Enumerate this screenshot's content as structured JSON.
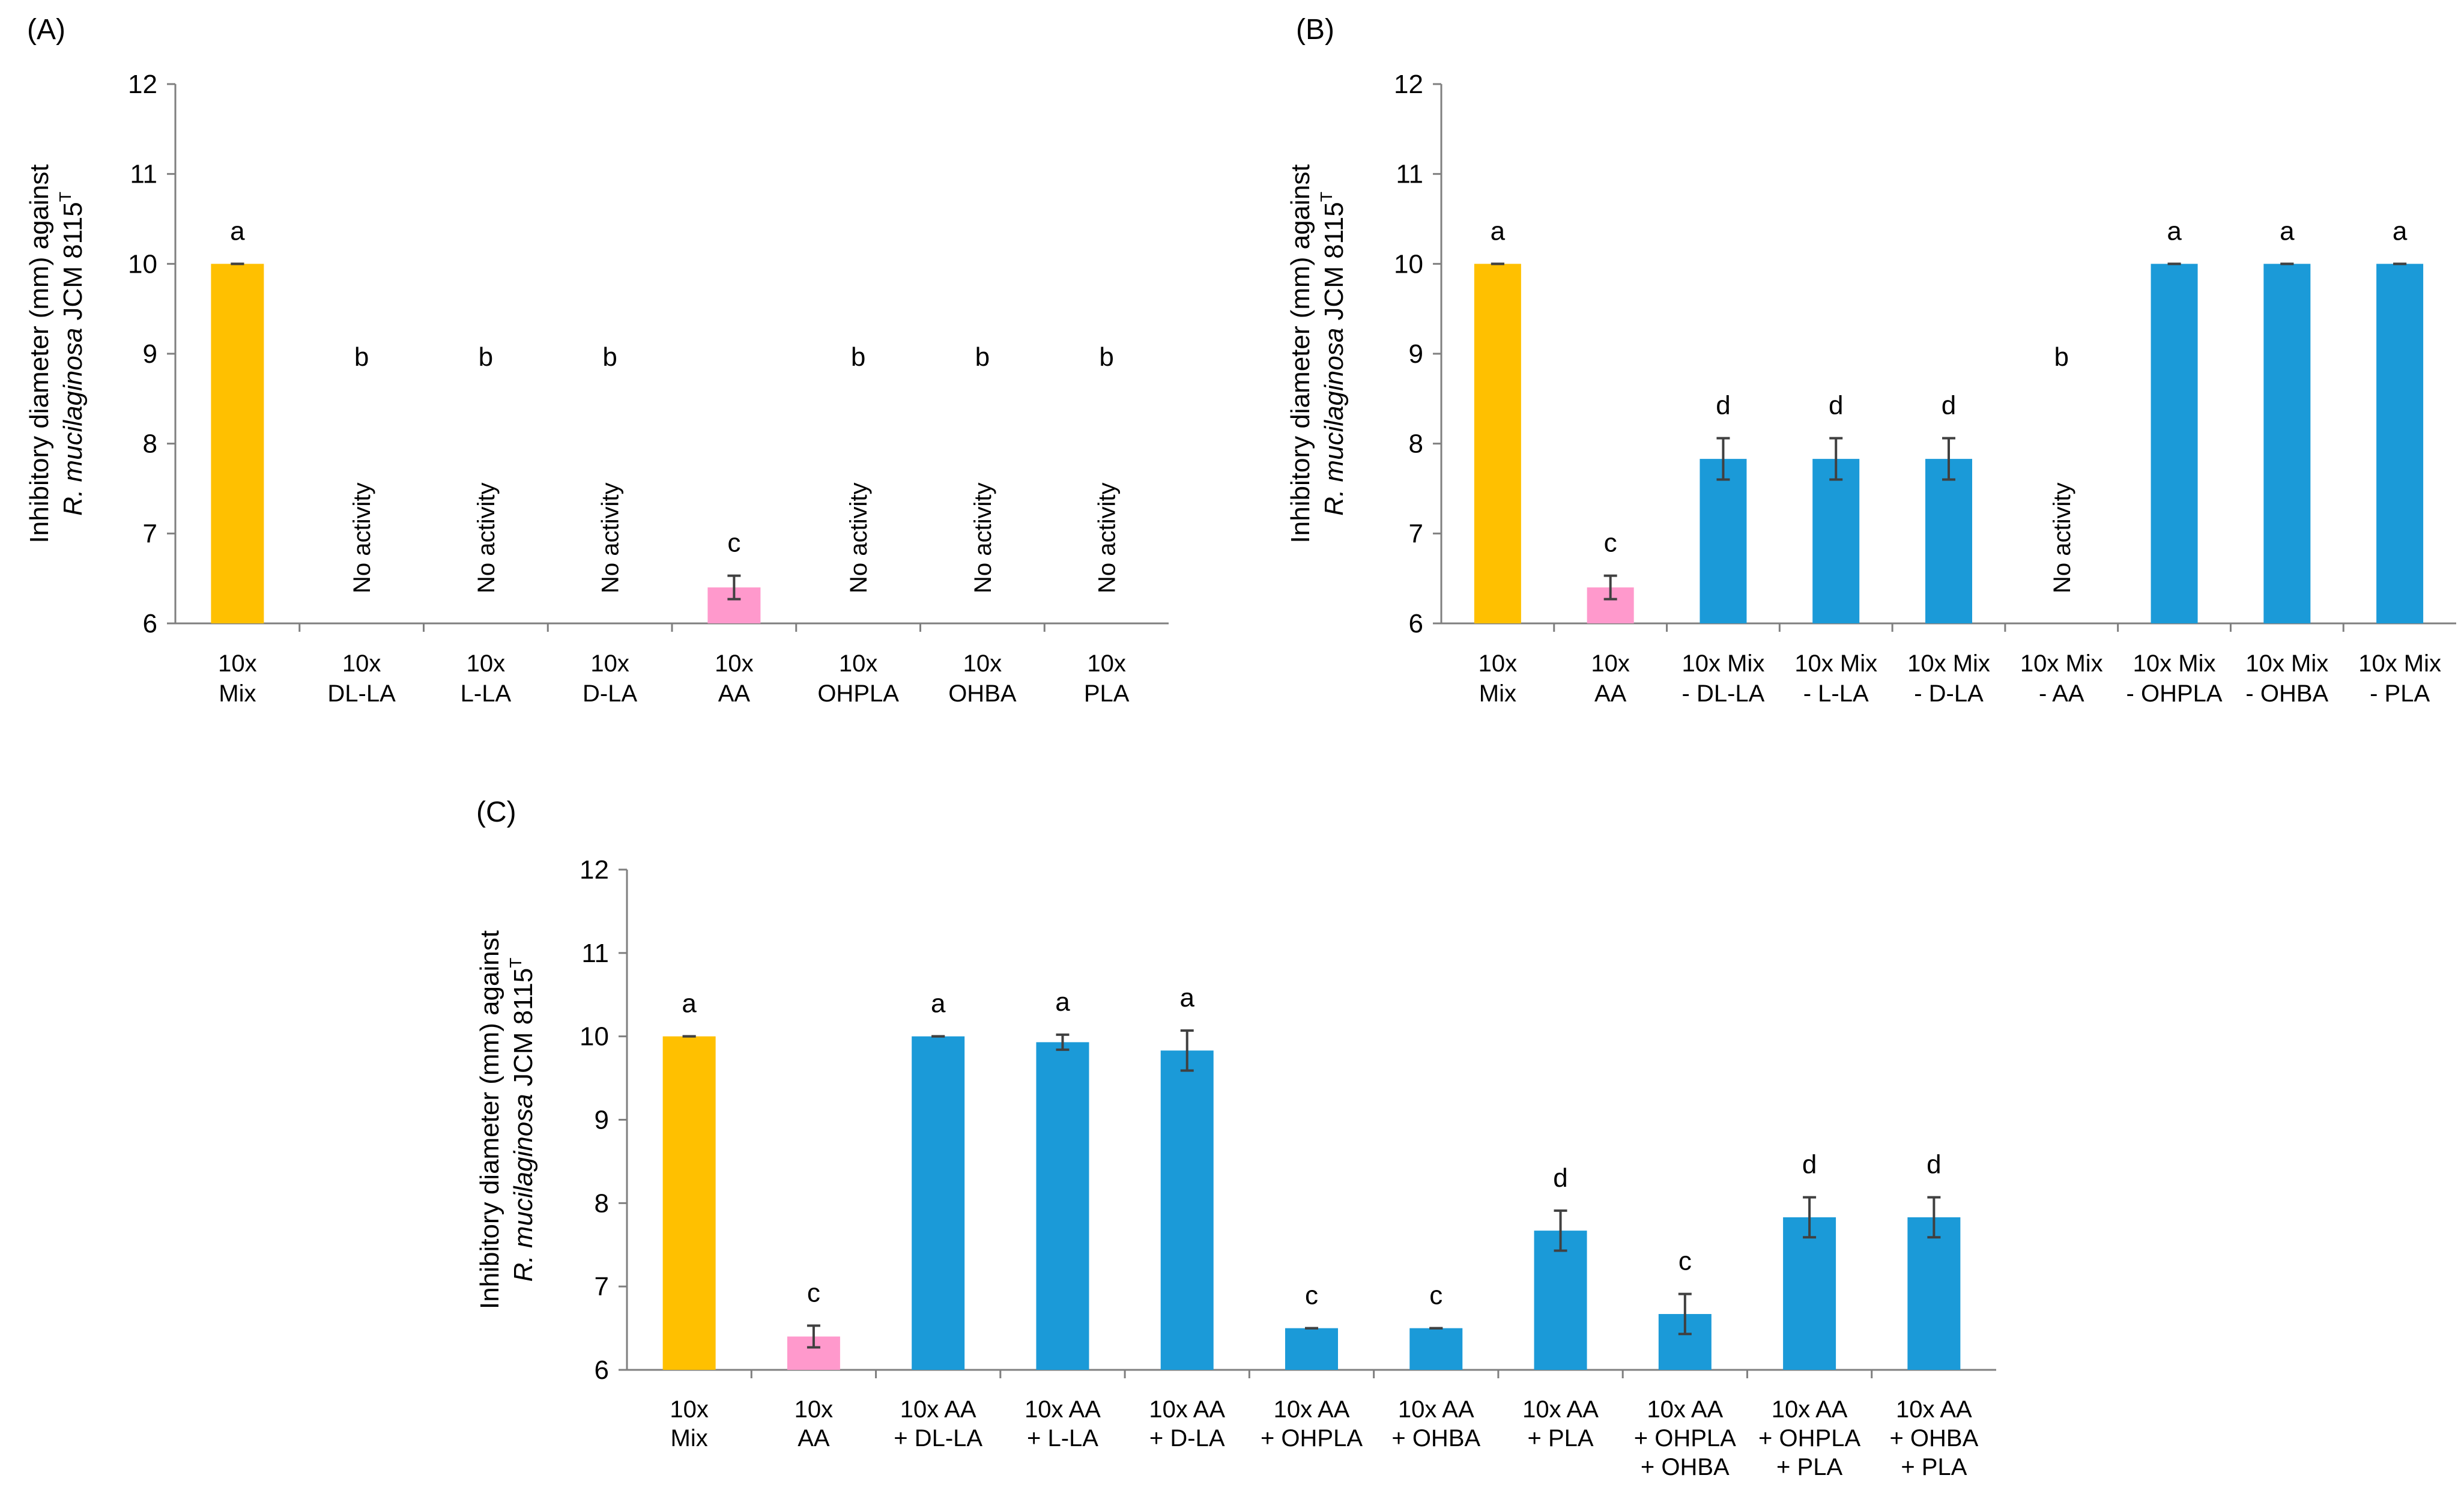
{
  "figure": {
    "y_axis_label_line1": "Inhibitory diameter (mm) against",
    "y_axis_label_line2_italic": "R. mucilaginosa",
    "y_axis_label_line2_rest": " JCM 8115",
    "y_axis_label_superscript": "T",
    "no_activity_label": "No activity"
  },
  "colors": {
    "mix": "#FFC000",
    "aa": "#FF99CC",
    "combo": "#1B9AD8",
    "axis": "#7F7F7F",
    "error_bar": "#404040"
  },
  "chart_data": [
    {
      "type": "bar",
      "panel_label": "(A)",
      "ylim": [
        6,
        12
      ],
      "yticks": [
        6,
        7,
        8,
        9,
        10,
        11,
        12
      ],
      "ylabel": "Inhibitory diameter (mm) against R. mucilaginosa JCM 8115T",
      "categories": [
        [
          "10x",
          "Mix"
        ],
        [
          "10x",
          "DL-LA"
        ],
        [
          "10x",
          "L-LA"
        ],
        [
          "10x",
          "D-LA"
        ],
        [
          "10x",
          "AA"
        ],
        [
          "10x",
          "OHPLA"
        ],
        [
          "10x",
          "OHBA"
        ],
        [
          "10x",
          "PLA"
        ]
      ],
      "values": [
        10.0,
        null,
        null,
        null,
        6.4,
        null,
        null,
        null
      ],
      "errors": [
        0.0,
        null,
        null,
        null,
        0.13,
        null,
        null,
        null
      ],
      "letters": [
        "a",
        "b",
        "b",
        "b",
        "c",
        "b",
        "b",
        "b"
      ],
      "no_activity": [
        false,
        true,
        true,
        true,
        false,
        true,
        true,
        true
      ],
      "bar_colors": [
        "mix",
        "combo",
        "combo",
        "combo",
        "aa",
        "combo",
        "combo",
        "combo"
      ]
    },
    {
      "type": "bar",
      "panel_label": "(B)",
      "ylim": [
        6,
        12
      ],
      "yticks": [
        6,
        7,
        8,
        9,
        10,
        11,
        12
      ],
      "ylabel": "Inhibitory diameter (mm) against R. mucilaginosa JCM 8115T",
      "categories": [
        [
          "10x",
          "Mix"
        ],
        [
          "10x",
          "AA"
        ],
        [
          "10x Mix",
          "- DL-LA"
        ],
        [
          "10x Mix",
          "- L-LA"
        ],
        [
          "10x Mix",
          "- D-LA"
        ],
        [
          "10x Mix",
          "- AA"
        ],
        [
          "10x Mix",
          "- OHPLA"
        ],
        [
          "10x Mix",
          "- OHBA"
        ],
        [
          "10x Mix",
          "- PLA"
        ]
      ],
      "values": [
        10.0,
        6.4,
        7.83,
        7.83,
        7.83,
        null,
        10.0,
        10.0,
        10.0
      ],
      "errors": [
        0.0,
        0.13,
        0.23,
        0.23,
        0.23,
        null,
        0.0,
        0.0,
        0.0
      ],
      "letters": [
        "a",
        "c",
        "d",
        "d",
        "d",
        "b",
        "a",
        "a",
        "a"
      ],
      "no_activity": [
        false,
        false,
        false,
        false,
        false,
        true,
        false,
        false,
        false
      ],
      "bar_colors": [
        "mix",
        "aa",
        "combo",
        "combo",
        "combo",
        "combo",
        "combo",
        "combo",
        "combo"
      ]
    },
    {
      "type": "bar",
      "panel_label": "(C)",
      "ylim": [
        6,
        12
      ],
      "yticks": [
        6,
        7,
        8,
        9,
        10,
        11,
        12
      ],
      "ylabel": "Inhibitory diameter (mm) against R. mucilaginosa JCM 8115T",
      "categories": [
        [
          "10x",
          "Mix"
        ],
        [
          "10x",
          "AA"
        ],
        [
          "10x AA",
          "+ DL-LA"
        ],
        [
          "10x AA",
          "+ L-LA"
        ],
        [
          "10x AA",
          "+ D-LA"
        ],
        [
          "10x AA",
          "+ OHPLA"
        ],
        [
          "10x AA",
          "+ OHBA"
        ],
        [
          "10x AA",
          "+ PLA"
        ],
        [
          "10x AA",
          "+ OHPLA",
          "+ OHBA"
        ],
        [
          "10x AA",
          "+ OHPLA",
          "+ PLA"
        ],
        [
          "10x AA",
          "+ OHBA",
          "+ PLA"
        ]
      ],
      "values": [
        10.0,
        6.4,
        10.0,
        9.93,
        9.83,
        6.5,
        6.5,
        7.67,
        6.67,
        7.83,
        7.83
      ],
      "errors": [
        0.0,
        0.13,
        0.0,
        0.09,
        0.24,
        0.0,
        0.0,
        0.24,
        0.24,
        0.24,
        0.24
      ],
      "letters": [
        "a",
        "c",
        "a",
        "a",
        "a",
        "c",
        "c",
        "d",
        "c",
        "d",
        "d"
      ],
      "no_activity": [
        false,
        false,
        false,
        false,
        false,
        false,
        false,
        false,
        false,
        false,
        false
      ],
      "bar_colors": [
        "mix",
        "aa",
        "combo",
        "combo",
        "combo",
        "combo",
        "combo",
        "combo",
        "combo",
        "combo",
        "combo"
      ]
    }
  ]
}
